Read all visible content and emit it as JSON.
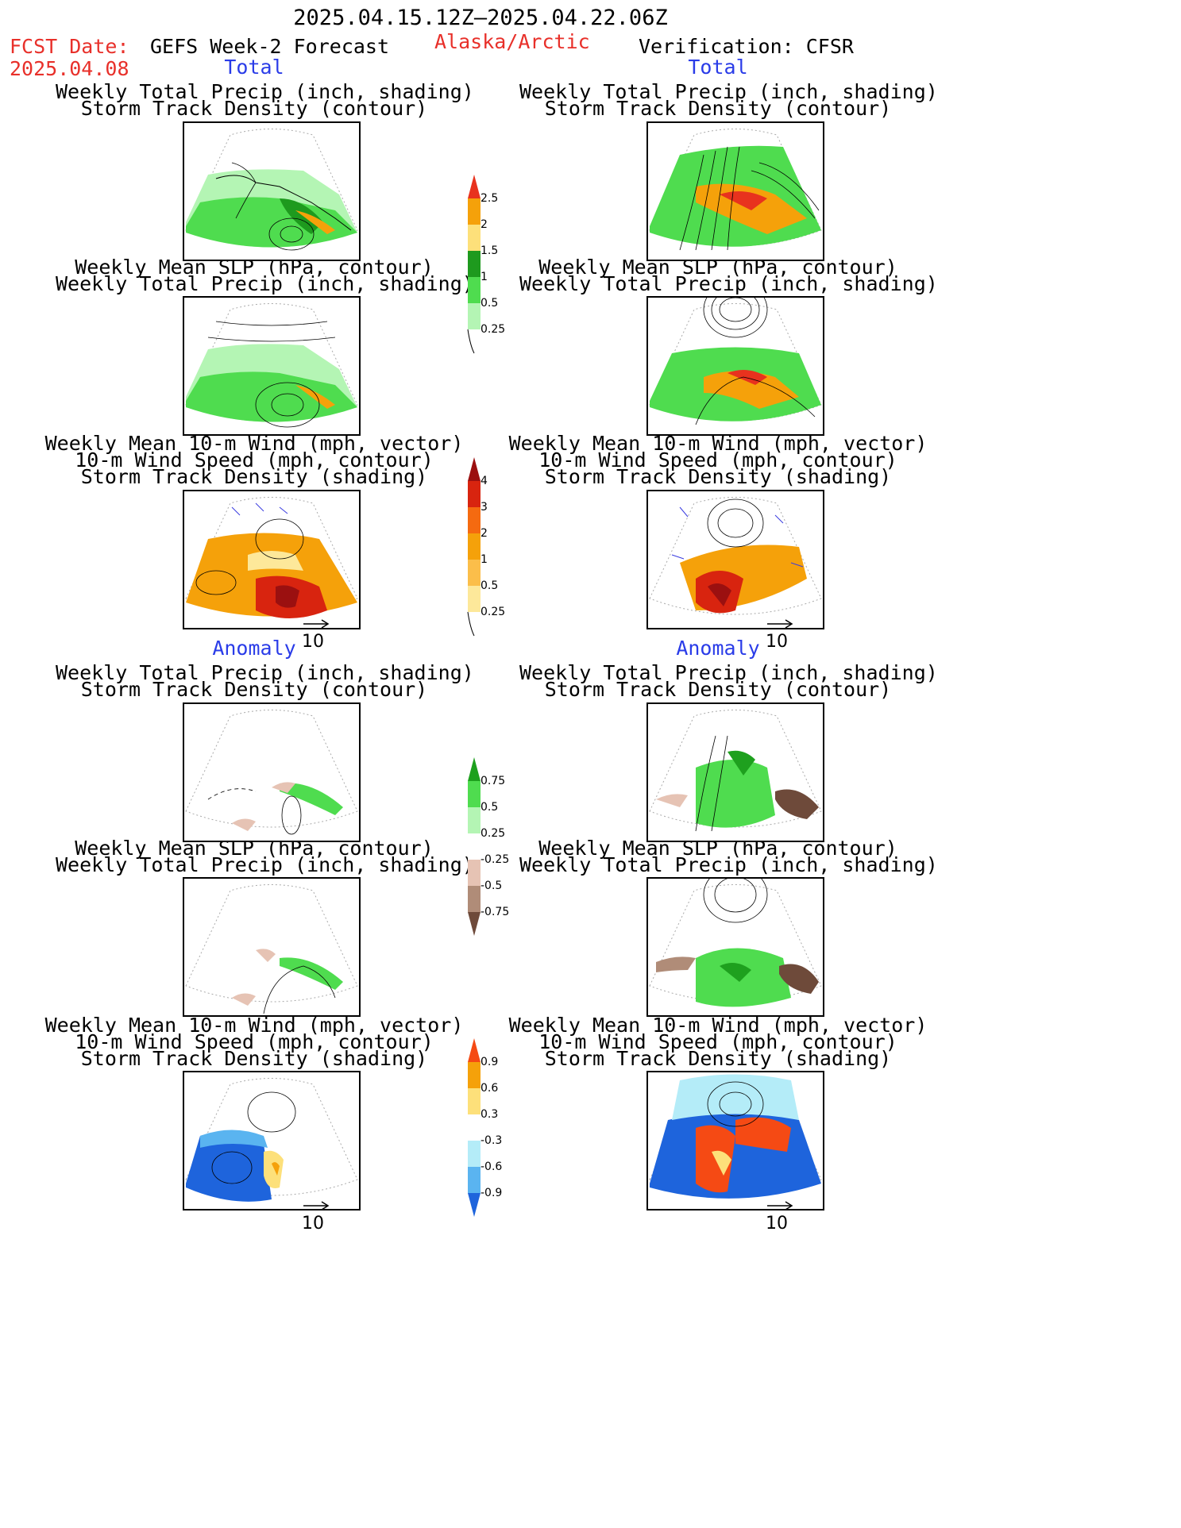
{
  "header": {
    "date_range": "2025.04.15.12Z–2025.04.22.06Z",
    "fcst_label": "FCST Date:",
    "fcst_date": "2025.04.08",
    "model": "GEFS Week-2 Forecast",
    "region": "Alaska/Arctic",
    "verification": "Verification: CFSR"
  },
  "sections": {
    "total": "Total",
    "anomaly": "Anomaly"
  },
  "titles": {
    "precip_track": [
      "Weekly Total Precip (inch, shading)",
      "Storm Track Density (contour)"
    ],
    "slp_precip": [
      "Weekly Mean SLP (hPa, contour)",
      "Weekly Total Precip (inch, shading)"
    ],
    "wind_track": [
      "Weekly Mean 10-m Wind (mph, vector)",
      "10-m Wind Speed (mph, contour)",
      "Storm Track Density (shading)"
    ]
  },
  "vector_label": "10",
  "colorbars": {
    "precip_total": {
      "labels": [
        "2.5",
        "2",
        "1.5",
        "1",
        "0.5",
        "0.25"
      ],
      "colors": [
        "#e8321e",
        "#f5a10a",
        "#fde07a",
        "#1e9a1e",
        "#4fdc4f",
        "#b4f5b4"
      ]
    },
    "track_total": {
      "labels": [
        "4",
        "3",
        "2",
        "1",
        "0.5",
        "0.25"
      ],
      "colors": [
        "#9b1010",
        "#d8240f",
        "#f56a10",
        "#f5a10a",
        "#fbbe4a",
        "#fde89a"
      ]
    },
    "precip_anom": {
      "labels": [
        "0.75",
        "0.5",
        "0.25",
        "-0.25",
        "-0.5",
        "-0.75"
      ],
      "colors": [
        "#1ea01e",
        "#4fdc4f",
        "#b4f5b4",
        "#ffffff",
        "#e6c3b4",
        "#b08c78",
        "#6e4a3a"
      ]
    },
    "track_anom": {
      "labels": [
        "0.9",
        "0.6",
        "0.3",
        "-0.3",
        "-0.6",
        "-0.9"
      ],
      "colors": [
        "#f54a14",
        "#f5a10a",
        "#fde07a",
        "#ffffff",
        "#b4ecf8",
        "#5ab4f0",
        "#1e64dc"
      ]
    }
  }
}
